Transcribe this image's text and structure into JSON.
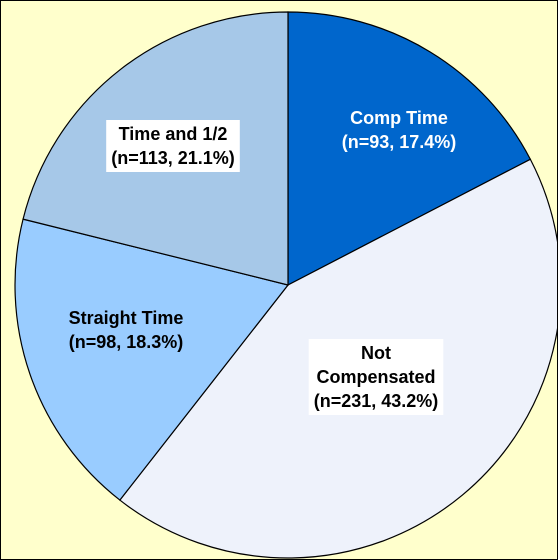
{
  "chart_data": {
    "type": "pie",
    "slices": [
      {
        "label_lines": [
          "Comp Time",
          "(n=93, 17.4%)"
        ],
        "value": 93,
        "percent": 17.4,
        "color": "#0066cc",
        "text_color": "#ffffff",
        "label_box": false
      },
      {
        "label_lines": [
          "Not",
          "Compensated",
          "(n=231, 43.2%)"
        ],
        "value": 231,
        "percent": 43.2,
        "color": "#eef2fb",
        "text_color": "#000000",
        "label_box": true
      },
      {
        "label_lines": [
          "Straight Time",
          "(n=98, 18.3%)"
        ],
        "value": 98,
        "percent": 18.3,
        "color": "#99ccff",
        "text_color": "#000000",
        "label_box": false
      },
      {
        "label_lines": [
          "Time and 1/2",
          "(n=113, 21.1%)"
        ],
        "value": 113,
        "percent": 21.1,
        "color": "#a6c8e8",
        "text_color": "#000000",
        "label_box": true
      }
    ],
    "start_angle": "12 o'clock",
    "direction": "clockwise",
    "legend": "none",
    "background_color": "#ffffcc",
    "border_color": "#000000"
  }
}
